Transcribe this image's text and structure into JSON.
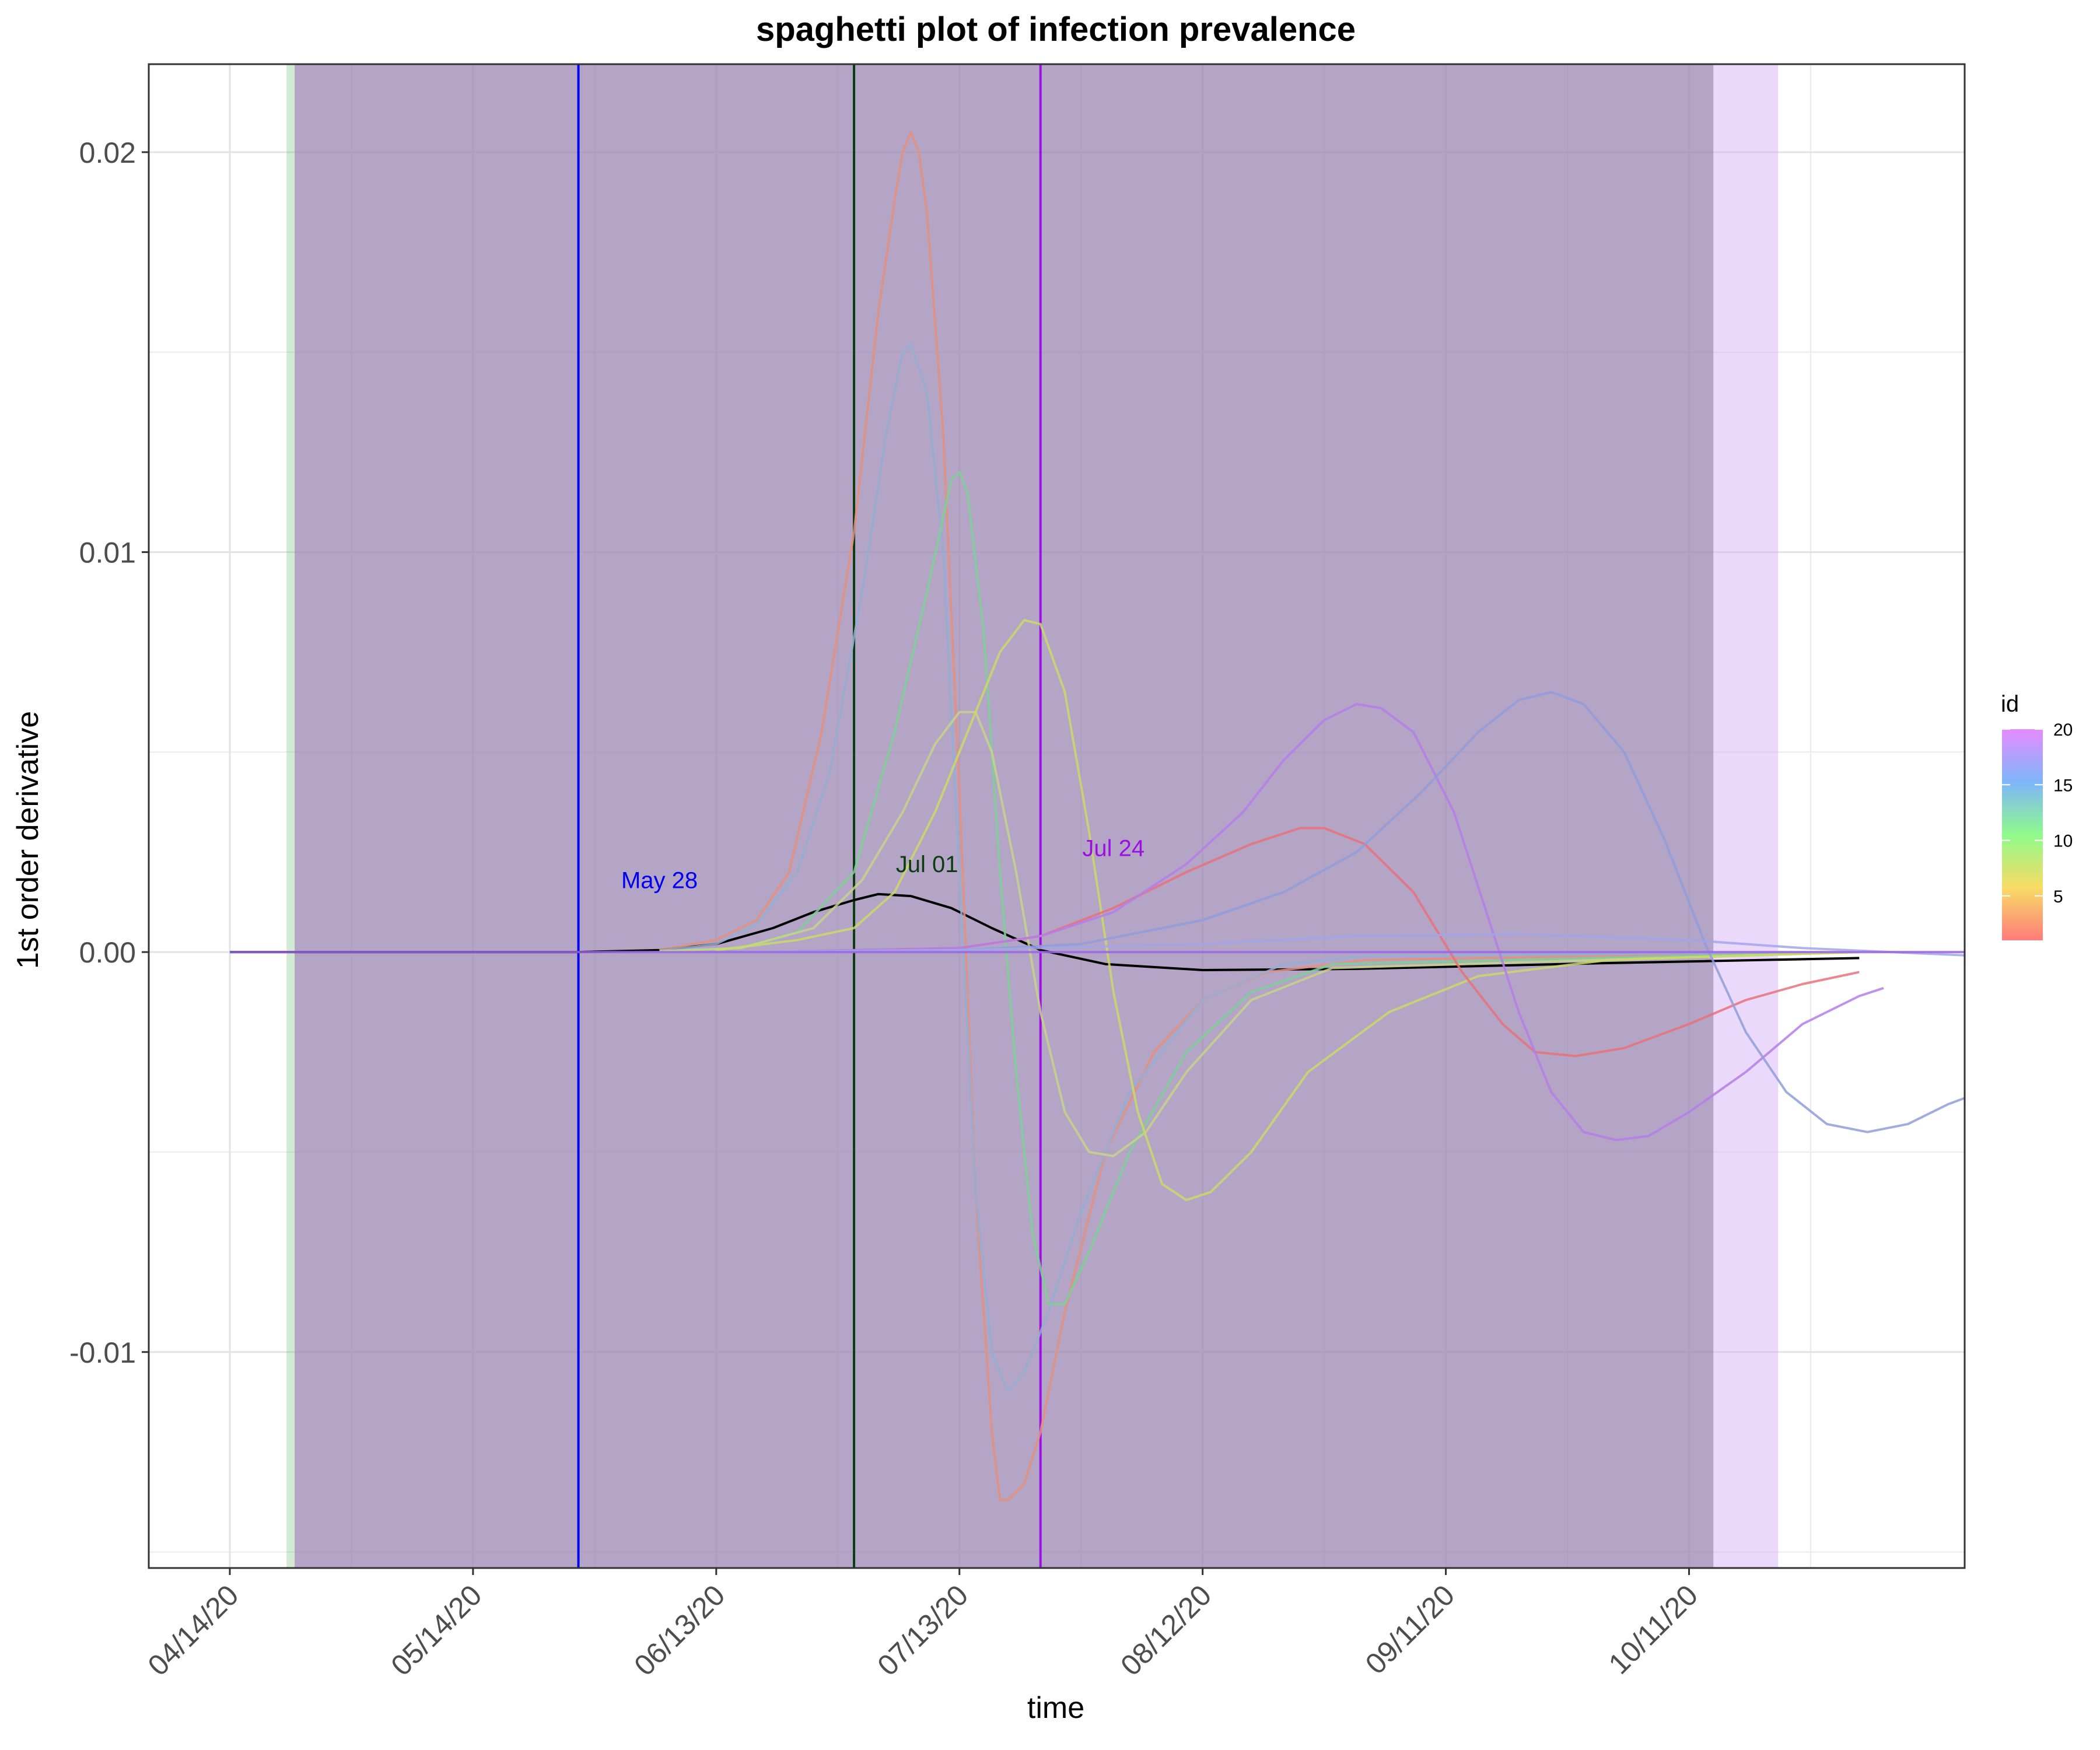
{
  "chart_data": {
    "type": "line",
    "title": "spaghetti plot of infection prevalence",
    "xlabel": "time",
    "ylabel": "1st order derivative",
    "x_domain": [
      "2020-04-04",
      "2020-11-14"
    ],
    "ylim": [
      -0.0154,
      0.0222
    ],
    "y_ticks": [
      -0.01,
      0.0,
      0.01,
      0.02
    ],
    "y_tick_labels": [
      "-0.01",
      "0.00",
      "0.01",
      "0.02"
    ],
    "x_ticks": [
      "2020-04-14",
      "2020-05-14",
      "2020-06-13",
      "2020-07-13",
      "2020-08-12",
      "2020-09-11",
      "2020-10-11"
    ],
    "x_tick_labels": [
      "04/14/20",
      "05/14/20",
      "06/13/20",
      "07/13/20",
      "08/12/20",
      "09/11/20",
      "10/11/20"
    ],
    "grid": true,
    "legend": {
      "title": "id",
      "position": "right",
      "labels": [
        "20",
        "15",
        "10",
        "5"
      ],
      "values": [
        20,
        15,
        10,
        5
      ],
      "range": [
        1,
        20
      ],
      "colors": [
        "#ff7c7c",
        "#f7dc65",
        "#8ffa8a",
        "#7fb5fb",
        "#e48cff"
      ]
    },
    "shaded_regions": [
      {
        "start": "2020-04-21",
        "end": "2020-10-14",
        "color": "#6cb96b",
        "opacity": 0.3
      },
      {
        "start": "2020-04-22",
        "end": "2020-10-22",
        "color": "#d8b4f8",
        "opacity": 0.5
      },
      {
        "start": "2020-04-22",
        "end": "2020-10-14",
        "color": "#7a5a8c",
        "opacity": 0.36
      }
    ],
    "vlines": [
      {
        "date": "2020-05-27",
        "color": "#0000ee",
        "label": "May 28",
        "label_x": "2020-06-06",
        "label_y": 0.0016
      },
      {
        "date": "2020-06-30",
        "color": "#0d3b12",
        "label": "Jul 01",
        "label_x": "2020-07-09",
        "label_y": 0.002
      },
      {
        "date": "2020-07-23",
        "color": "#9b10e0",
        "label": "Jul 24",
        "label_x": "2020-08-01",
        "label_y": 0.0024
      }
    ],
    "series": [
      {
        "color": "#000000",
        "points": [
          [
            "2020-04-14",
            0
          ],
          [
            "2020-05-27",
            0
          ],
          [
            "2020-06-06",
            5e-05
          ],
          [
            "2020-06-13",
            0.0002
          ],
          [
            "2020-06-20",
            0.0006
          ],
          [
            "2020-06-25",
            0.001
          ],
          [
            "2020-06-30",
            0.0013
          ],
          [
            "2020-07-03",
            0.00145
          ],
          [
            "2020-07-07",
            0.0014
          ],
          [
            "2020-07-12",
            0.0011
          ],
          [
            "2020-07-17",
            0.0006
          ],
          [
            "2020-07-23",
            5e-05
          ],
          [
            "2020-07-31",
            -0.0003
          ],
          [
            "2020-08-12",
            -0.00045
          ],
          [
            "2020-08-31",
            -0.00042
          ],
          [
            "2020-09-30",
            -0.00028
          ],
          [
            "2020-11-01",
            -0.00015
          ]
        ]
      },
      {
        "color": "#e3907f",
        "points": [
          [
            "2020-06-06",
            5e-05
          ],
          [
            "2020-06-13",
            0.0003
          ],
          [
            "2020-06-18",
            0.0008
          ],
          [
            "2020-06-22",
            0.002
          ],
          [
            "2020-06-26",
            0.0055
          ],
          [
            "2020-06-30",
            0.0105
          ],
          [
            "2020-07-03",
            0.016
          ],
          [
            "2020-07-05",
            0.0188
          ],
          [
            "2020-07-06",
            0.02
          ],
          [
            "2020-07-07",
            0.0205
          ],
          [
            "2020-07-08",
            0.02
          ],
          [
            "2020-07-09",
            0.0185
          ],
          [
            "2020-07-11",
            0.013
          ],
          [
            "2020-07-13",
            0.004
          ],
          [
            "2020-07-15",
            -0.006
          ],
          [
            "2020-07-17",
            -0.012
          ],
          [
            "2020-07-18",
            -0.0137
          ],
          [
            "2020-07-19",
            -0.0137
          ],
          [
            "2020-07-21",
            -0.0133
          ],
          [
            "2020-07-23",
            -0.012
          ],
          [
            "2020-07-26",
            -0.009
          ],
          [
            "2020-07-31",
            -0.005
          ],
          [
            "2020-08-06",
            -0.0025
          ],
          [
            "2020-08-12",
            -0.0012
          ],
          [
            "2020-08-20",
            -0.0005
          ],
          [
            "2020-09-01",
            -0.0002
          ],
          [
            "2020-11-01",
            0
          ]
        ]
      },
      {
        "color": "#96aed2",
        "points": [
          [
            "2020-06-06",
            3e-05
          ],
          [
            "2020-06-13",
            0.0002
          ],
          [
            "2020-06-18",
            0.0007
          ],
          [
            "2020-06-23",
            0.002
          ],
          [
            "2020-06-27",
            0.0045
          ],
          [
            "2020-07-01",
            0.009
          ],
          [
            "2020-07-04",
            0.013
          ],
          [
            "2020-07-06",
            0.015
          ],
          [
            "2020-07-07",
            0.0152
          ],
          [
            "2020-07-09",
            0.014
          ],
          [
            "2020-07-11",
            0.01
          ],
          [
            "2020-07-13",
            0.002
          ],
          [
            "2020-07-15",
            -0.006
          ],
          [
            "2020-07-17",
            -0.01
          ],
          [
            "2020-07-19",
            -0.011
          ],
          [
            "2020-07-21",
            -0.0105
          ],
          [
            "2020-07-24",
            -0.009
          ],
          [
            "2020-07-28",
            -0.0065
          ],
          [
            "2020-08-03",
            -0.0035
          ],
          [
            "2020-08-12",
            -0.0012
          ],
          [
            "2020-08-22",
            -0.0003
          ],
          [
            "2020-09-01",
            -0.0001
          ],
          [
            "2020-11-01",
            0
          ]
        ]
      },
      {
        "color": "#7fd096",
        "points": [
          [
            "2020-06-06",
            2e-05
          ],
          [
            "2020-06-16",
            0.0001
          ],
          [
            "2020-06-23",
            0.0005
          ],
          [
            "2020-06-30",
            0.002
          ],
          [
            "2020-07-05",
            0.0055
          ],
          [
            "2020-07-09",
            0.009
          ],
          [
            "2020-07-12",
            0.0118
          ],
          [
            "2020-07-13",
            0.012
          ],
          [
            "2020-07-14",
            0.0115
          ],
          [
            "2020-07-16",
            0.008
          ],
          [
            "2020-07-18",
            0.002
          ],
          [
            "2020-07-20",
            -0.003
          ],
          [
            "2020-07-22",
            -0.007
          ],
          [
            "2020-07-24",
            -0.0088
          ],
          [
            "2020-07-26",
            -0.0088
          ],
          [
            "2020-07-29",
            -0.0075
          ],
          [
            "2020-08-03",
            -0.005
          ],
          [
            "2020-08-10",
            -0.0025
          ],
          [
            "2020-08-18",
            -0.001
          ],
          [
            "2020-08-28",
            -0.0003
          ],
          [
            "2020-11-01",
            0
          ]
        ]
      },
      {
        "color": "#c6d48a",
        "points": [
          [
            "2020-06-06",
            2e-05
          ],
          [
            "2020-06-16",
            0.0001
          ],
          [
            "2020-06-25",
            0.0006
          ],
          [
            "2020-07-01",
            0.0018
          ],
          [
            "2020-07-06",
            0.0035
          ],
          [
            "2020-07-10",
            0.0052
          ],
          [
            "2020-07-13",
            0.006
          ],
          [
            "2020-07-15",
            0.006
          ],
          [
            "2020-07-17",
            0.005
          ],
          [
            "2020-07-20",
            0.002
          ],
          [
            "2020-07-23",
            -0.0015
          ],
          [
            "2020-07-26",
            -0.004
          ],
          [
            "2020-07-29",
            -0.005
          ],
          [
            "2020-08-01",
            -0.0051
          ],
          [
            "2020-08-05",
            -0.0045
          ],
          [
            "2020-08-10",
            -0.003
          ],
          [
            "2020-08-18",
            -0.0012
          ],
          [
            "2020-08-28",
            -0.0004
          ],
          [
            "2020-11-01",
            0
          ]
        ]
      },
      {
        "color": "#c9d96a",
        "points": [
          [
            "2020-06-13",
            5e-05
          ],
          [
            "2020-06-23",
            0.0003
          ],
          [
            "2020-06-30",
            0.0006
          ],
          [
            "2020-07-05",
            0.0015
          ],
          [
            "2020-07-10",
            0.0035
          ],
          [
            "2020-07-14",
            0.0055
          ],
          [
            "2020-07-18",
            0.0075
          ],
          [
            "2020-07-21",
            0.0083
          ],
          [
            "2020-07-23",
            0.0082
          ],
          [
            "2020-07-26",
            0.0065
          ],
          [
            "2020-07-29",
            0.003
          ],
          [
            "2020-08-01",
            -0.001
          ],
          [
            "2020-08-04",
            -0.004
          ],
          [
            "2020-08-07",
            -0.0058
          ],
          [
            "2020-08-10",
            -0.0062
          ],
          [
            "2020-08-13",
            -0.006
          ],
          [
            "2020-08-18",
            -0.005
          ],
          [
            "2020-08-25",
            -0.003
          ],
          [
            "2020-09-04",
            -0.0015
          ],
          [
            "2020-09-15",
            -0.0006
          ],
          [
            "2020-10-01",
            -0.0002
          ],
          [
            "2020-11-01",
            0
          ]
        ]
      },
      {
        "color": "#e8727a",
        "points": [
          [
            "2020-06-23",
            2e-05
          ],
          [
            "2020-07-13",
            0.0001
          ],
          [
            "2020-07-23",
            0.0004
          ],
          [
            "2020-08-01",
            0.0011
          ],
          [
            "2020-08-10",
            0.002
          ],
          [
            "2020-08-18",
            0.0027
          ],
          [
            "2020-08-24",
            0.0031
          ],
          [
            "2020-08-27",
            0.0031
          ],
          [
            "2020-09-01",
            0.0027
          ],
          [
            "2020-09-07",
            0.0015
          ],
          [
            "2020-09-13",
            -0.0005
          ],
          [
            "2020-09-18",
            -0.0018
          ],
          [
            "2020-09-22",
            -0.0025
          ],
          [
            "2020-09-27",
            -0.0026
          ],
          [
            "2020-10-03",
            -0.0024
          ],
          [
            "2020-10-11",
            -0.0018
          ],
          [
            "2020-10-18",
            -0.0012
          ],
          [
            "2020-10-25",
            -0.0008
          ],
          [
            "2020-11-01",
            -0.0005
          ]
        ]
      },
      {
        "color": "#b47ee8",
        "points": [
          [
            "2020-06-23",
            2e-05
          ],
          [
            "2020-07-13",
            0.0001
          ],
          [
            "2020-07-23",
            0.0004
          ],
          [
            "2020-08-01",
            0.001
          ],
          [
            "2020-08-10",
            0.0022
          ],
          [
            "2020-08-17",
            0.0035
          ],
          [
            "2020-08-22",
            0.0048
          ],
          [
            "2020-08-27",
            0.0058
          ],
          [
            "2020-08-31",
            0.0062
          ],
          [
            "2020-09-03",
            0.0061
          ],
          [
            "2020-09-07",
            0.0055
          ],
          [
            "2020-09-12",
            0.0035
          ],
          [
            "2020-09-16",
            0.001
          ],
          [
            "2020-09-20",
            -0.0015
          ],
          [
            "2020-09-24",
            -0.0035
          ],
          [
            "2020-09-28",
            -0.0045
          ],
          [
            "2020-10-02",
            -0.0047
          ],
          [
            "2020-10-06",
            -0.0046
          ],
          [
            "2020-10-11",
            -0.004
          ],
          [
            "2020-10-18",
            -0.003
          ],
          [
            "2020-10-25",
            -0.0018
          ],
          [
            "2020-11-01",
            -0.0011
          ],
          [
            "2020-11-04",
            -0.0009
          ]
        ]
      },
      {
        "color": "#8f9ed8",
        "points": [
          [
            "2020-06-23",
            2e-05
          ],
          [
            "2020-07-13",
            5e-05
          ],
          [
            "2020-07-28",
            0.0002
          ],
          [
            "2020-08-12",
            0.0008
          ],
          [
            "2020-08-22",
            0.0015
          ],
          [
            "2020-08-31",
            0.0025
          ],
          [
            "2020-09-08",
            0.004
          ],
          [
            "2020-09-15",
            0.0055
          ],
          [
            "2020-09-20",
            0.0063
          ],
          [
            "2020-09-24",
            0.0065
          ],
          [
            "2020-09-28",
            0.0062
          ],
          [
            "2020-10-03",
            0.005
          ],
          [
            "2020-10-08",
            0.0028
          ],
          [
            "2020-10-13",
            0.0002
          ],
          [
            "2020-10-18",
            -0.002
          ],
          [
            "2020-10-23",
            -0.0035
          ],
          [
            "2020-10-28",
            -0.0043
          ],
          [
            "2020-11-02",
            -0.0045
          ],
          [
            "2020-11-07",
            -0.0043
          ],
          [
            "2020-11-12",
            -0.0038
          ],
          [
            "2020-11-16",
            -0.0035
          ]
        ]
      },
      {
        "color": "#a2a6e8",
        "points": [
          [
            "2020-06-13",
            0
          ],
          [
            "2020-07-13",
            5e-05
          ],
          [
            "2020-08-12",
            0.0002
          ],
          [
            "2020-08-31",
            0.0004
          ],
          [
            "2020-09-20",
            0.00045
          ],
          [
            "2020-10-11",
            0.0003
          ],
          [
            "2020-10-25",
            0.0001
          ],
          [
            "2020-11-16",
            -0.0001
          ]
        ]
      },
      {
        "color": "#9b66e6",
        "points": [
          [
            "2020-04-14",
            0
          ],
          [
            "2020-11-16",
            0
          ]
        ]
      }
    ]
  }
}
